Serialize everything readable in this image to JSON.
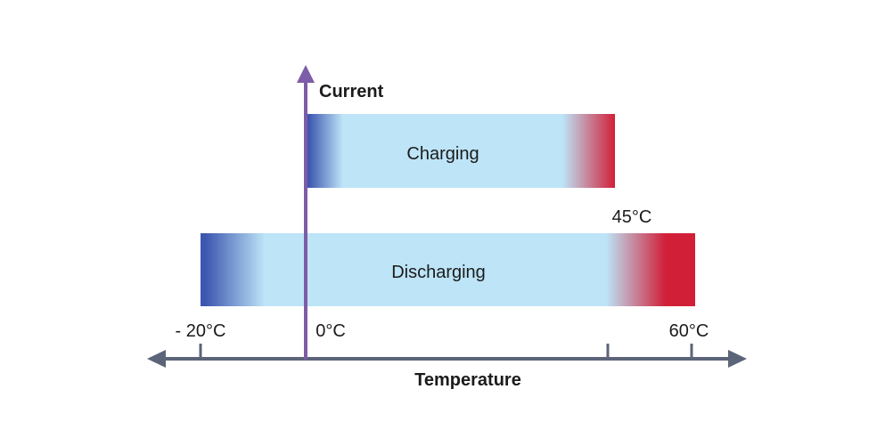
{
  "title": "",
  "axes": {
    "y_label": "Current",
    "x_label": "Temperature",
    "x_tick_labels": [
      "- 20°C",
      "0°C",
      "60°C"
    ],
    "annotation": "45°C"
  },
  "bars": [
    {
      "name": "charging",
      "label": "Charging",
      "start_temp_c": 0,
      "end_temp_c": 45
    },
    {
      "name": "discharging",
      "label": "Discharging",
      "start_temp_c": -20,
      "end_temp_c": 60
    }
  ],
  "colors": {
    "cold": "#3d57b0",
    "range": "#bde4f7",
    "hot": "#d11f38",
    "y_axis": "#7d5ca8",
    "x_axis": "#5b6478"
  }
}
